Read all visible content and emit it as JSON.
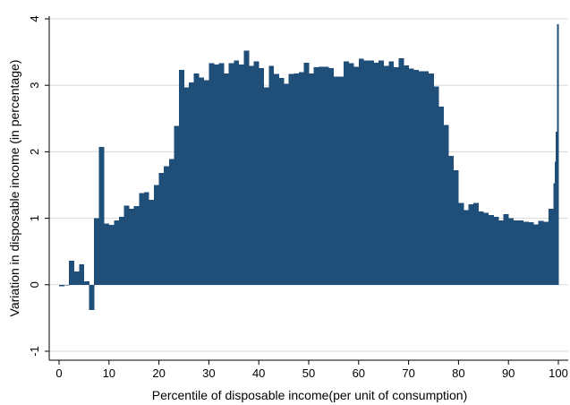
{
  "chart_data": {
    "type": "bar",
    "title": "",
    "xlabel": "Percentile of disposable income(per unit of consumption)",
    "ylabel": "Variation in disposable income (in percentage)",
    "xlim": [
      0,
      100
    ],
    "ylim": [
      -1,
      4
    ],
    "xticks": [
      "0",
      "10",
      "20",
      "30",
      "40",
      "50",
      "60",
      "70",
      "80",
      "90",
      "100"
    ],
    "xtick_values": [
      0,
      10,
      20,
      30,
      40,
      50,
      60,
      70,
      80,
      90,
      100
    ],
    "yticks": [
      "-1",
      "0",
      "1",
      "2",
      "3",
      "4"
    ],
    "ytick_values": [
      -1,
      0,
      1,
      2,
      3,
      4
    ],
    "grid": true,
    "legend": "none",
    "bar_color": "#1f4e79",
    "series": [
      {
        "x": [
          1,
          2,
          3,
          4,
          5,
          6,
          7,
          8,
          9,
          10,
          11,
          12,
          13,
          14,
          15,
          16,
          17,
          18,
          19,
          20,
          21,
          22,
          23,
          24,
          25,
          26,
          27,
          28,
          29,
          30,
          31,
          32,
          33,
          34,
          35,
          36,
          37,
          38,
          39,
          40,
          41,
          42,
          43,
          44,
          45,
          46,
          47,
          48,
          49,
          50,
          51,
          52,
          53,
          54,
          55,
          56,
          57,
          58,
          59,
          60,
          61,
          62,
          63,
          64,
          65,
          66,
          67,
          68,
          69,
          70,
          71,
          72,
          73,
          74,
          75,
          76,
          77,
          78,
          79,
          80,
          81,
          82,
          83,
          84,
          85,
          86,
          87,
          88,
          89,
          90,
          91,
          92,
          93,
          94,
          95,
          96,
          97,
          98,
          99,
          99.25,
          99.5,
          99.75,
          100
        ],
        "values": [
          -0.02,
          -0.01,
          0.36,
          0.2,
          0.31,
          0.05,
          -0.38,
          1.0,
          2.07,
          0.92,
          0.9,
          0.97,
          1.02,
          1.19,
          1.14,
          1.18,
          1.38,
          1.39,
          1.28,
          1.5,
          1.68,
          1.78,
          1.89,
          2.39,
          3.23,
          2.97,
          3.04,
          3.18,
          3.12,
          3.08,
          3.33,
          3.31,
          3.33,
          3.18,
          3.33,
          3.37,
          3.31,
          3.52,
          3.29,
          3.36,
          3.26,
          2.97,
          3.29,
          3.17,
          3.11,
          3.02,
          3.17,
          3.18,
          3.2,
          3.34,
          3.18,
          3.27,
          3.28,
          3.28,
          3.26,
          3.13,
          3.13,
          3.36,
          3.33,
          3.28,
          3.4,
          3.37,
          3.37,
          3.34,
          3.37,
          3.29,
          3.36,
          3.27,
          3.41,
          3.3,
          3.25,
          3.23,
          3.21,
          3.21,
          3.18,
          2.98,
          2.68,
          2.4,
          1.94,
          1.72,
          1.23,
          1.12,
          1.21,
          1.23,
          1.1,
          1.08,
          1.05,
          1.02,
          0.97,
          1.06,
          1.0,
          0.97,
          0.97,
          0.95,
          0.94,
          0.91,
          0.96,
          0.95,
          1.14,
          1.53,
          1.85,
          2.3,
          3.92
        ]
      }
    ]
  }
}
